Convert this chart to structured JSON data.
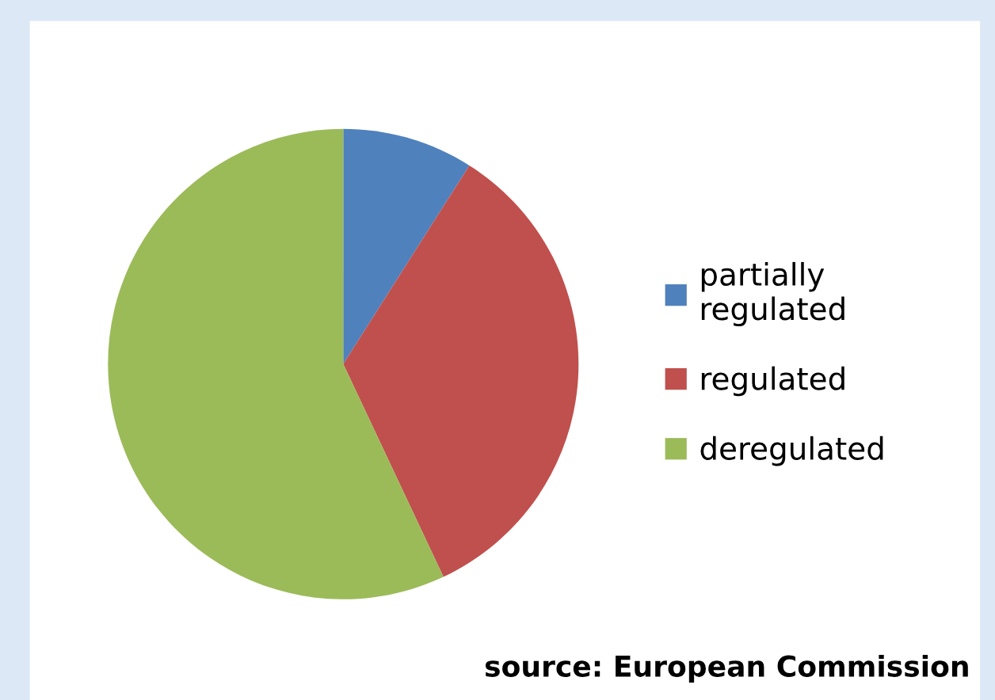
{
  "chart_data": {
    "type": "pie",
    "categories": [
      "partially\nregulated",
      "regulated",
      "deregulated"
    ],
    "values": [
      9,
      34,
      57
    ],
    "colors": [
      "#4f81bd",
      "#c0504d",
      "#9bbb59"
    ],
    "legend": "right",
    "annotations": [
      "source: European Commission"
    ]
  }
}
